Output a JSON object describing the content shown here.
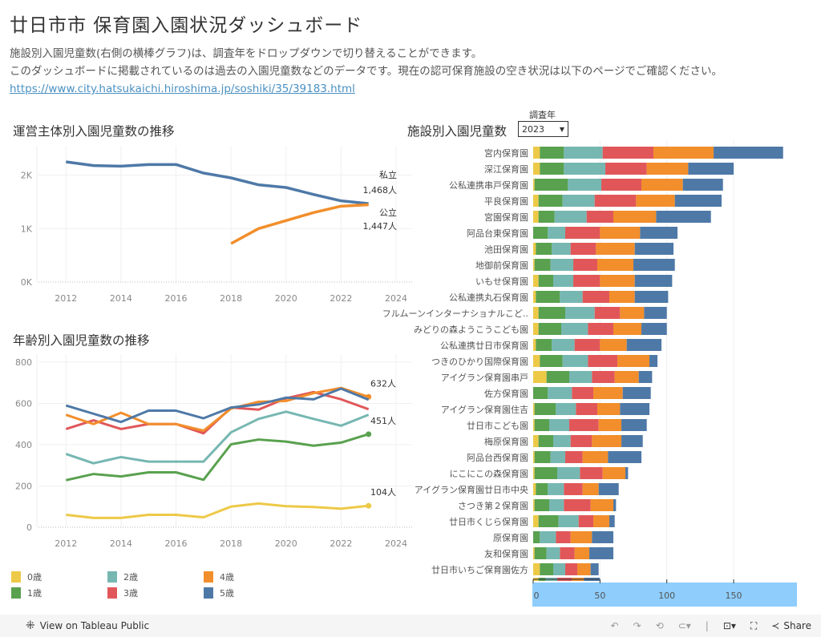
{
  "header": {
    "title": "廿日市市 保育園入園状況ダッシュボード",
    "desc_line1": "施設別入園児童数(右側の横棒グラフ)は、調査年をドロップダウンで切り替えることができます。",
    "desc_line2": "このダッシュボードに掲載されているのは過去の入園児童数などのデータです。現在の認可保育施設の空き状況は以下のページでご確認ください。",
    "link": "https://www.city.hatsukaichi.hiroshima.jp/soshiki/35/39183.html"
  },
  "colors": {
    "private": "#4e79a7",
    "public": "#f28e2b",
    "age0": "#edc948",
    "age1": "#59a14f",
    "age2": "#76b7b2",
    "age3": "#e15759",
    "age4": "#f28e2b",
    "age5": "#4e79a7"
  },
  "filter": {
    "label": "調査年",
    "value": "2023"
  },
  "legend": [
    {
      "label": "0歳",
      "key": "age0"
    },
    {
      "label": "1歳",
      "key": "age1"
    },
    {
      "label": "2歳",
      "key": "age2"
    },
    {
      "label": "3歳",
      "key": "age3"
    },
    {
      "label": "4歳",
      "key": "age4"
    },
    {
      "label": "5歳",
      "key": "age5"
    }
  ],
  "footer": {
    "view_label": "View on Tableau Public",
    "share_label": "Share"
  },
  "chart_data": [
    {
      "type": "line",
      "title": "運営主体別入園児童数の推移",
      "x": [
        2012,
        2013,
        2014,
        2015,
        2016,
        2017,
        2018,
        2019,
        2020,
        2021,
        2022,
        2023
      ],
      "xticks": [
        "2012",
        "2014",
        "2016",
        "2018",
        "2020",
        "2022",
        "2024"
      ],
      "xlim": [
        2011,
        2024
      ],
      "yticks": [
        "0K",
        "1K",
        "2K"
      ],
      "ylim": [
        0,
        2400
      ],
      "grid": true,
      "series": [
        {
          "name": "私立",
          "key": "private",
          "label": "私立",
          "value_label": "1,468人",
          "values": [
            2250,
            2180,
            2170,
            2200,
            2200,
            2040,
            1950,
            1820,
            1770,
            1640,
            1520,
            1468
          ]
        },
        {
          "name": "公立",
          "key": "public",
          "label": "公立",
          "value_label": "1,447人",
          "values": [
            null,
            null,
            null,
            null,
            null,
            null,
            720,
            1000,
            1150,
            1300,
            1420,
            1447
          ]
        }
      ]
    },
    {
      "type": "line",
      "title": "年齢別入園児童数の推移",
      "x": [
        2012,
        2013,
        2014,
        2015,
        2016,
        2017,
        2018,
        2019,
        2020,
        2021,
        2022,
        2023
      ],
      "xticks": [
        "2012",
        "2014",
        "2016",
        "2018",
        "2020",
        "2022",
        "2024"
      ],
      "xlim": [
        2011,
        2024
      ],
      "yticks": [
        "0",
        "200",
        "400",
        "600",
        "800"
      ],
      "ylim": [
        0,
        800
      ],
      "grid": true,
      "series": [
        {
          "name": "0歳",
          "key": "age0",
          "values": [
            60,
            45,
            45,
            60,
            60,
            48,
            100,
            115,
            102,
            98,
            90,
            104
          ],
          "end_label": "104人"
        },
        {
          "name": "1歳",
          "key": "age1",
          "values": [
            228,
            258,
            246,
            266,
            266,
            230,
            402,
            425,
            415,
            395,
            410,
            451
          ],
          "end_label": "451人"
        },
        {
          "name": "2歳",
          "key": "age2",
          "values": [
            355,
            310,
            340,
            318,
            318,
            318,
            460,
            525,
            560,
            525,
            492,
            545
          ],
          "end_label": ""
        },
        {
          "name": "3歳",
          "key": "age3",
          "values": [
            476,
            518,
            476,
            500,
            500,
            455,
            580,
            570,
            625,
            655,
            620,
            572
          ],
          "end_label": ""
        },
        {
          "name": "4歳",
          "key": "age4",
          "values": [
            545,
            500,
            555,
            500,
            500,
            468,
            575,
            608,
            612,
            650,
            675,
            632
          ],
          "end_label": "632人"
        },
        {
          "name": "5歳",
          "key": "age5",
          "values": [
            590,
            550,
            510,
            565,
            565,
            528,
            580,
            595,
            628,
            620,
            672,
            618
          ],
          "end_label": ""
        }
      ]
    },
    {
      "type": "bar",
      "orientation": "horizontal",
      "stacked": true,
      "title": "施設別入園児童数",
      "xticks": [
        "0",
        "50",
        "100",
        "150"
      ],
      "xlim": [
        0,
        200
      ],
      "series_keys": [
        "age0",
        "age1",
        "age2",
        "age3",
        "age4",
        "age5"
      ],
      "categories": [
        "宮内保育園",
        "深江保育園",
        "公私連携串戸保育園",
        "平良保育園",
        "宮園保育園",
        "阿品台東保育園",
        "池田保育園",
        "地御前保育園",
        "いもせ保育園",
        "公私連携丸石保育園",
        "フルムーンインターナショナルこど..",
        "みどりの森ようこうこども園",
        "公私連携廿日市保育園",
        "つきのひかり国際保育園",
        "アイグラン保育園串戸",
        "佐方保育園",
        "アイグラン保育園住吉",
        "廿日市こども園",
        "梅原保育園",
        "阿品台西保育園",
        "にこにこの森保育園",
        "アイグラン保育園廿日市中央",
        "さつき第２保育園",
        "廿日市くじら保育園",
        "原保育園",
        "友和保育園",
        "廿日市いちご保育園佐方",
        ""
      ],
      "values": [
        [
          5,
          18,
          29,
          38,
          45,
          52
        ],
        [
          5,
          18,
          31,
          31,
          31,
          34
        ],
        [
          1,
          25,
          25,
          30,
          31,
          30
        ],
        [
          4,
          18,
          24,
          31,
          29,
          35
        ],
        [
          4,
          12,
          24,
          20,
          32,
          41
        ],
        [
          0,
          11,
          13,
          26,
          30,
          28
        ],
        [
          2,
          12,
          14,
          19,
          29,
          29
        ],
        [
          1,
          12,
          17,
          18,
          27,
          31
        ],
        [
          4,
          11,
          15,
          20,
          26,
          28
        ],
        [
          2,
          18,
          17,
          20,
          19,
          25
        ],
        [
          4,
          20,
          22,
          19,
          18,
          17
        ],
        [
          4,
          17,
          20,
          19,
          21,
          19
        ],
        [
          2,
          12,
          17,
          19,
          20,
          26
        ],
        [
          5,
          17,
          19,
          22,
          24,
          6
        ],
        [
          10,
          17,
          17,
          17,
          18,
          10
        ],
        [
          0,
          11,
          18,
          16,
          22,
          21
        ],
        [
          1,
          16,
          15,
          16,
          17,
          22
        ],
        [
          1,
          11,
          15,
          22,
          17,
          19
        ],
        [
          4,
          11,
          13,
          16,
          22,
          16
        ],
        [
          1,
          12,
          11,
          13,
          19,
          25
        ],
        [
          1,
          17,
          17,
          17,
          17,
          2
        ],
        [
          2,
          9,
          12,
          14,
          12,
          15
        ],
        [
          1,
          11,
          11,
          20,
          17,
          2
        ],
        [
          4,
          15,
          15,
          11,
          12,
          4
        ],
        [
          0,
          5,
          12,
          11,
          16,
          16
        ],
        [
          1,
          9,
          10,
          11,
          11,
          18
        ],
        [
          5,
          10,
          9,
          9,
          10,
          6
        ],
        [
          4,
          5,
          9,
          11,
          9,
          12
        ]
      ]
    }
  ]
}
